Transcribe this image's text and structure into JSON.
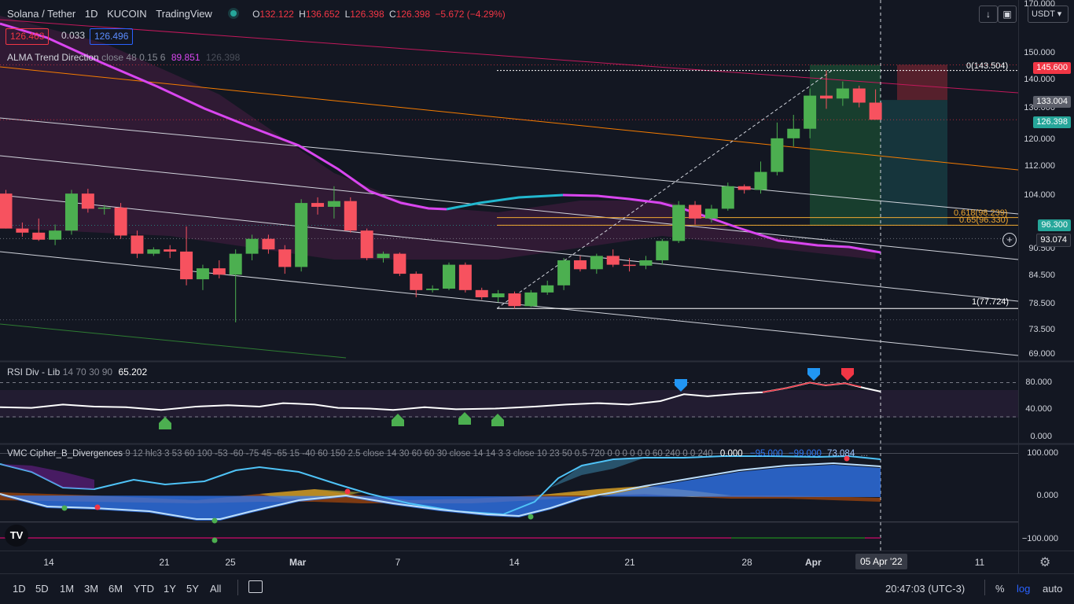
{
  "symbol": {
    "title": "Solana / Tether",
    "interval": "1D",
    "exchange": "KUCOIN",
    "source": "TradingView",
    "ohlc": {
      "o_label": "O",
      "o": "132.122",
      "h_label": "H",
      "h": "136.652",
      "l_label": "L",
      "l": "126.398",
      "c_label": "C",
      "c": "126.398",
      "change": "−5.672 (−4.29%)"
    },
    "bid": "126.463",
    "spread": "0.033",
    "ask": "126.496",
    "currency": "USDT"
  },
  "alma": {
    "name": "ALMA Trend Direction",
    "params": "close 48 0.15 6",
    "v1": "89.851",
    "v2": "126.398"
  },
  "rsi": {
    "name": "RSI Div - Lib",
    "params": "14 70 30 90",
    "value": "65.202",
    "ticks": [
      "80.000",
      "40.000",
      "0.000"
    ]
  },
  "vmc": {
    "name": "VMC Cipher_B_Divergences",
    "params": "9 12 hlc3 3 53 60 100 -53 -60 -75 45 -65 15 -40 60 150 2.5 close 14 30 60 60 30 close 14 14 3 3 close 10 23 50 0.5 720 0 0 0 0 0 0 60 240 0 0 240",
    "v1": "0.000",
    "v2": "−95.000",
    "v3": "−99.000",
    "v4": "73.084",
    "more": "...",
    "ticks": [
      "100.000",
      "0.000",
      "−100.000"
    ]
  },
  "price_axis": {
    "ticks": [
      "170.000",
      "150.000",
      "140.000",
      "130.000",
      "120.000",
      "112.000",
      "104.000",
      "90.500",
      "84.500",
      "78.500",
      "73.500",
      "69.000"
    ],
    "labels": {
      "high": "145.600",
      "mid": "133.004",
      "last": "126.398",
      "target": "96.300",
      "cross": "93.074"
    }
  },
  "fib": {
    "top": "0(143.504)",
    "l618": "0.618(98.239)",
    "l65": "0.65(96.330)",
    "bottom": "1(77.724)"
  },
  "time_axis": {
    "ticks": [
      "14",
      "21",
      "25",
      "Mar",
      "7",
      "14",
      "21",
      "28",
      "Apr",
      "11"
    ],
    "cursor_label": "05 Apr '22"
  },
  "bottom_bar": {
    "ranges": [
      "1D",
      "5D",
      "1M",
      "3M",
      "6M",
      "YTD",
      "1Y",
      "5Y",
      "All"
    ],
    "time": "20:47:03 (UTC-3)",
    "percent": "%",
    "log": "log",
    "auto": "auto"
  },
  "chart_data": {
    "type": "candlestick",
    "candles": [
      {
        "o": 104.5,
        "h": 105.5,
        "l": 95.5,
        "c": 95.5
      },
      {
        "o": 95.5,
        "h": 97.0,
        "l": 93.5,
        "c": 94.5
      },
      {
        "o": 94.5,
        "h": 98.0,
        "l": 92.5,
        "c": 92.8
      },
      {
        "o": 92.8,
        "h": 96.5,
        "l": 91.5,
        "c": 95.0
      },
      {
        "o": 95.0,
        "h": 105.5,
        "l": 94.0,
        "c": 104.5
      },
      {
        "o": 104.5,
        "h": 105.8,
        "l": 99.5,
        "c": 100.5
      },
      {
        "o": 100.5,
        "h": 101.5,
        "l": 99.0,
        "c": 100.8
      },
      {
        "o": 100.8,
        "h": 102.0,
        "l": 93.0,
        "c": 93.8
      },
      {
        "o": 93.8,
        "h": 95.0,
        "l": 88.5,
        "c": 89.5
      },
      {
        "o": 89.5,
        "h": 91.0,
        "l": 89.0,
        "c": 90.5
      },
      {
        "o": 90.5,
        "h": 91.5,
        "l": 88.5,
        "c": 90.0
      },
      {
        "o": 90.0,
        "h": 96.0,
        "l": 82.5,
        "c": 83.8
      },
      {
        "o": 83.8,
        "h": 87.0,
        "l": 81.5,
        "c": 86.2
      },
      {
        "o": 86.2,
        "h": 88.0,
        "l": 84.0,
        "c": 84.8
      },
      {
        "o": 84.8,
        "h": 90.5,
        "l": 75.0,
        "c": 89.5
      },
      {
        "o": 89.5,
        "h": 94.0,
        "l": 88.0,
        "c": 93.0
      },
      {
        "o": 93.0,
        "h": 94.0,
        "l": 89.5,
        "c": 90.5
      },
      {
        "o": 90.5,
        "h": 91.5,
        "l": 85.0,
        "c": 86.5
      },
      {
        "o": 86.5,
        "h": 103.0,
        "l": 85.5,
        "c": 102.0
      },
      {
        "o": 102.0,
        "h": 103.5,
        "l": 99.0,
        "c": 101.0
      },
      {
        "o": 101.0,
        "h": 106.5,
        "l": 98.0,
        "c": 102.5
      },
      {
        "o": 102.5,
        "h": 103.5,
        "l": 94.5,
        "c": 95.0
      },
      {
        "o": 95.0,
        "h": 95.5,
        "l": 88.0,
        "c": 88.5
      },
      {
        "o": 88.5,
        "h": 90.0,
        "l": 87.5,
        "c": 89.5
      },
      {
        "o": 89.5,
        "h": 89.8,
        "l": 84.5,
        "c": 85.0
      },
      {
        "o": 85.0,
        "h": 85.5,
        "l": 80.0,
        "c": 81.5
      },
      {
        "o": 81.5,
        "h": 82.5,
        "l": 81.0,
        "c": 81.8
      },
      {
        "o": 81.8,
        "h": 87.5,
        "l": 81.5,
        "c": 87.0
      },
      {
        "o": 87.0,
        "h": 87.5,
        "l": 81.0,
        "c": 81.5
      },
      {
        "o": 81.5,
        "h": 82.0,
        "l": 79.5,
        "c": 80.0
      },
      {
        "o": 80.0,
        "h": 81.5,
        "l": 79.0,
        "c": 80.8
      },
      {
        "o": 80.8,
        "h": 81.2,
        "l": 77.7,
        "c": 78.2
      },
      {
        "o": 78.2,
        "h": 81.5,
        "l": 78.0,
        "c": 81.0
      },
      {
        "o": 81.0,
        "h": 83.5,
        "l": 80.5,
        "c": 82.5
      },
      {
        "o": 82.5,
        "h": 88.5,
        "l": 81.5,
        "c": 88.0
      },
      {
        "o": 88.0,
        "h": 89.0,
        "l": 85.5,
        "c": 86.0
      },
      {
        "o": 86.0,
        "h": 89.5,
        "l": 85.0,
        "c": 89.0
      },
      {
        "o": 89.0,
        "h": 90.5,
        "l": 86.5,
        "c": 87.0
      },
      {
        "o": 87.0,
        "h": 88.5,
        "l": 85.5,
        "c": 86.8
      },
      {
        "o": 86.8,
        "h": 89.0,
        "l": 86.0,
        "c": 88.0
      },
      {
        "o": 88.0,
        "h": 93.0,
        "l": 87.0,
        "c": 92.5
      },
      {
        "o": 92.5,
        "h": 102.5,
        "l": 92.0,
        "c": 101.5
      },
      {
        "o": 101.5,
        "h": 102.5,
        "l": 96.5,
        "c": 98.0
      },
      {
        "o": 98.0,
        "h": 101.5,
        "l": 97.0,
        "c": 100.5
      },
      {
        "o": 100.5,
        "h": 107.5,
        "l": 100.0,
        "c": 106.5
      },
      {
        "o": 106.5,
        "h": 107.0,
        "l": 104.5,
        "c": 105.5
      },
      {
        "o": 105.5,
        "h": 113.5,
        "l": 104.5,
        "c": 110.5
      },
      {
        "o": 110.5,
        "h": 125.5,
        "l": 109.5,
        "c": 120.5
      },
      {
        "o": 120.5,
        "h": 128.0,
        "l": 118.0,
        "c": 123.5
      },
      {
        "o": 123.5,
        "h": 137.0,
        "l": 120.5,
        "c": 134.5
      },
      {
        "o": 134.5,
        "h": 143.5,
        "l": 130.0,
        "c": 133.5
      },
      {
        "o": 133.5,
        "h": 139.5,
        "l": 131.0,
        "c": 137.0
      },
      {
        "o": 137.0,
        "h": 138.0,
        "l": 130.5,
        "c": 132.1
      },
      {
        "o": 132.1,
        "h": 136.7,
        "l": 126.4,
        "c": 126.4
      }
    ]
  },
  "colors": {
    "bg": "#131722",
    "up": "#4caf50",
    "down": "#f7525f",
    "alma_down": "#d946ef",
    "alma_up": "#22b8cf",
    "rsi_line": "#ffffff",
    "fib": "#f0a830",
    "vmc_blue": "#3179f5"
  },
  "toolbar": {
    "download_icon": "download-arrow-icon",
    "fullscreen_icon": "fullscreen-icon",
    "settings_icon": "gear-icon",
    "logo_icon": "tradingview-logo-icon",
    "calendar_icon": "calendar-range-icon",
    "crosshair_icon": "crosshair-plus-icon"
  }
}
